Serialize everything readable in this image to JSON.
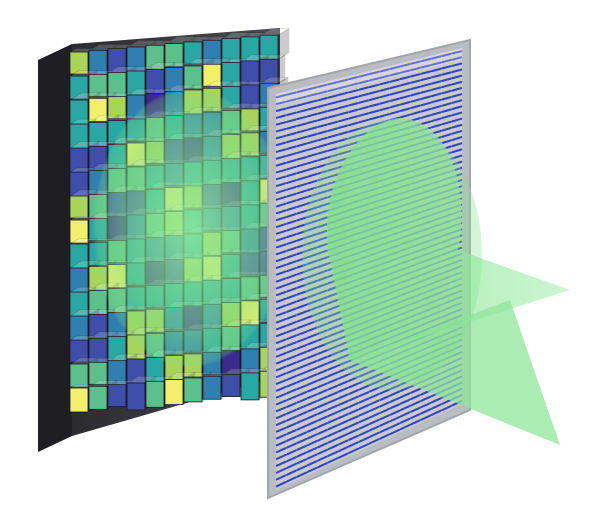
{
  "figure": {
    "components": [
      "metasurface-pixel-array",
      "emitted-beam",
      "pixelated-projection-screen",
      "projected-cone-beam"
    ]
  },
  "pixel_array": {
    "rows": 15,
    "cols": 11,
    "palette": [
      "#3b2a8f",
      "#3f4ea8",
      "#2f7fb0",
      "#29a7a4",
      "#5bc08c",
      "#a9d45a",
      "#f2f06a"
    ]
  },
  "screen": {
    "dot_rows": 58,
    "dot_color": "#2a3ac8",
    "frame_color": "#b9bcc0"
  },
  "beam": {
    "color": "#7fe08a"
  }
}
